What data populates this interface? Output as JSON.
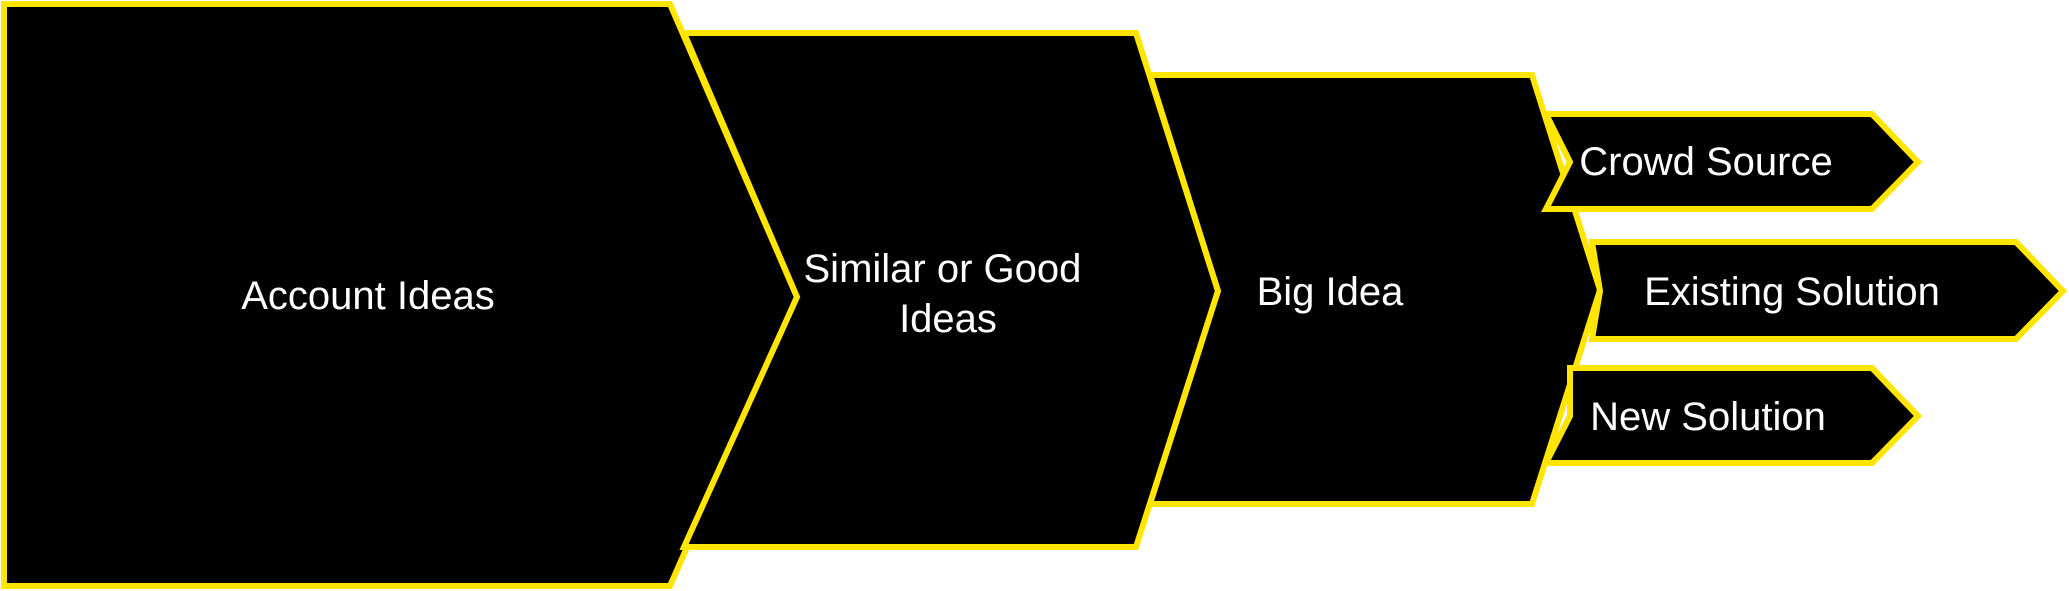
{
  "diagram": {
    "colors": {
      "fill": "#000000",
      "stroke": "#ffe500",
      "text": "#ffffff",
      "background": "#ffffff"
    },
    "stages": [
      {
        "label": "Account Ideas"
      },
      {
        "label_line1": "Similar or Good",
        "label_line2": "Ideas"
      },
      {
        "label": "Big Idea"
      }
    ],
    "outcomes": [
      {
        "label": "Crowd Source"
      },
      {
        "label": "Existing Solution"
      },
      {
        "label": "New Solution"
      }
    ]
  }
}
